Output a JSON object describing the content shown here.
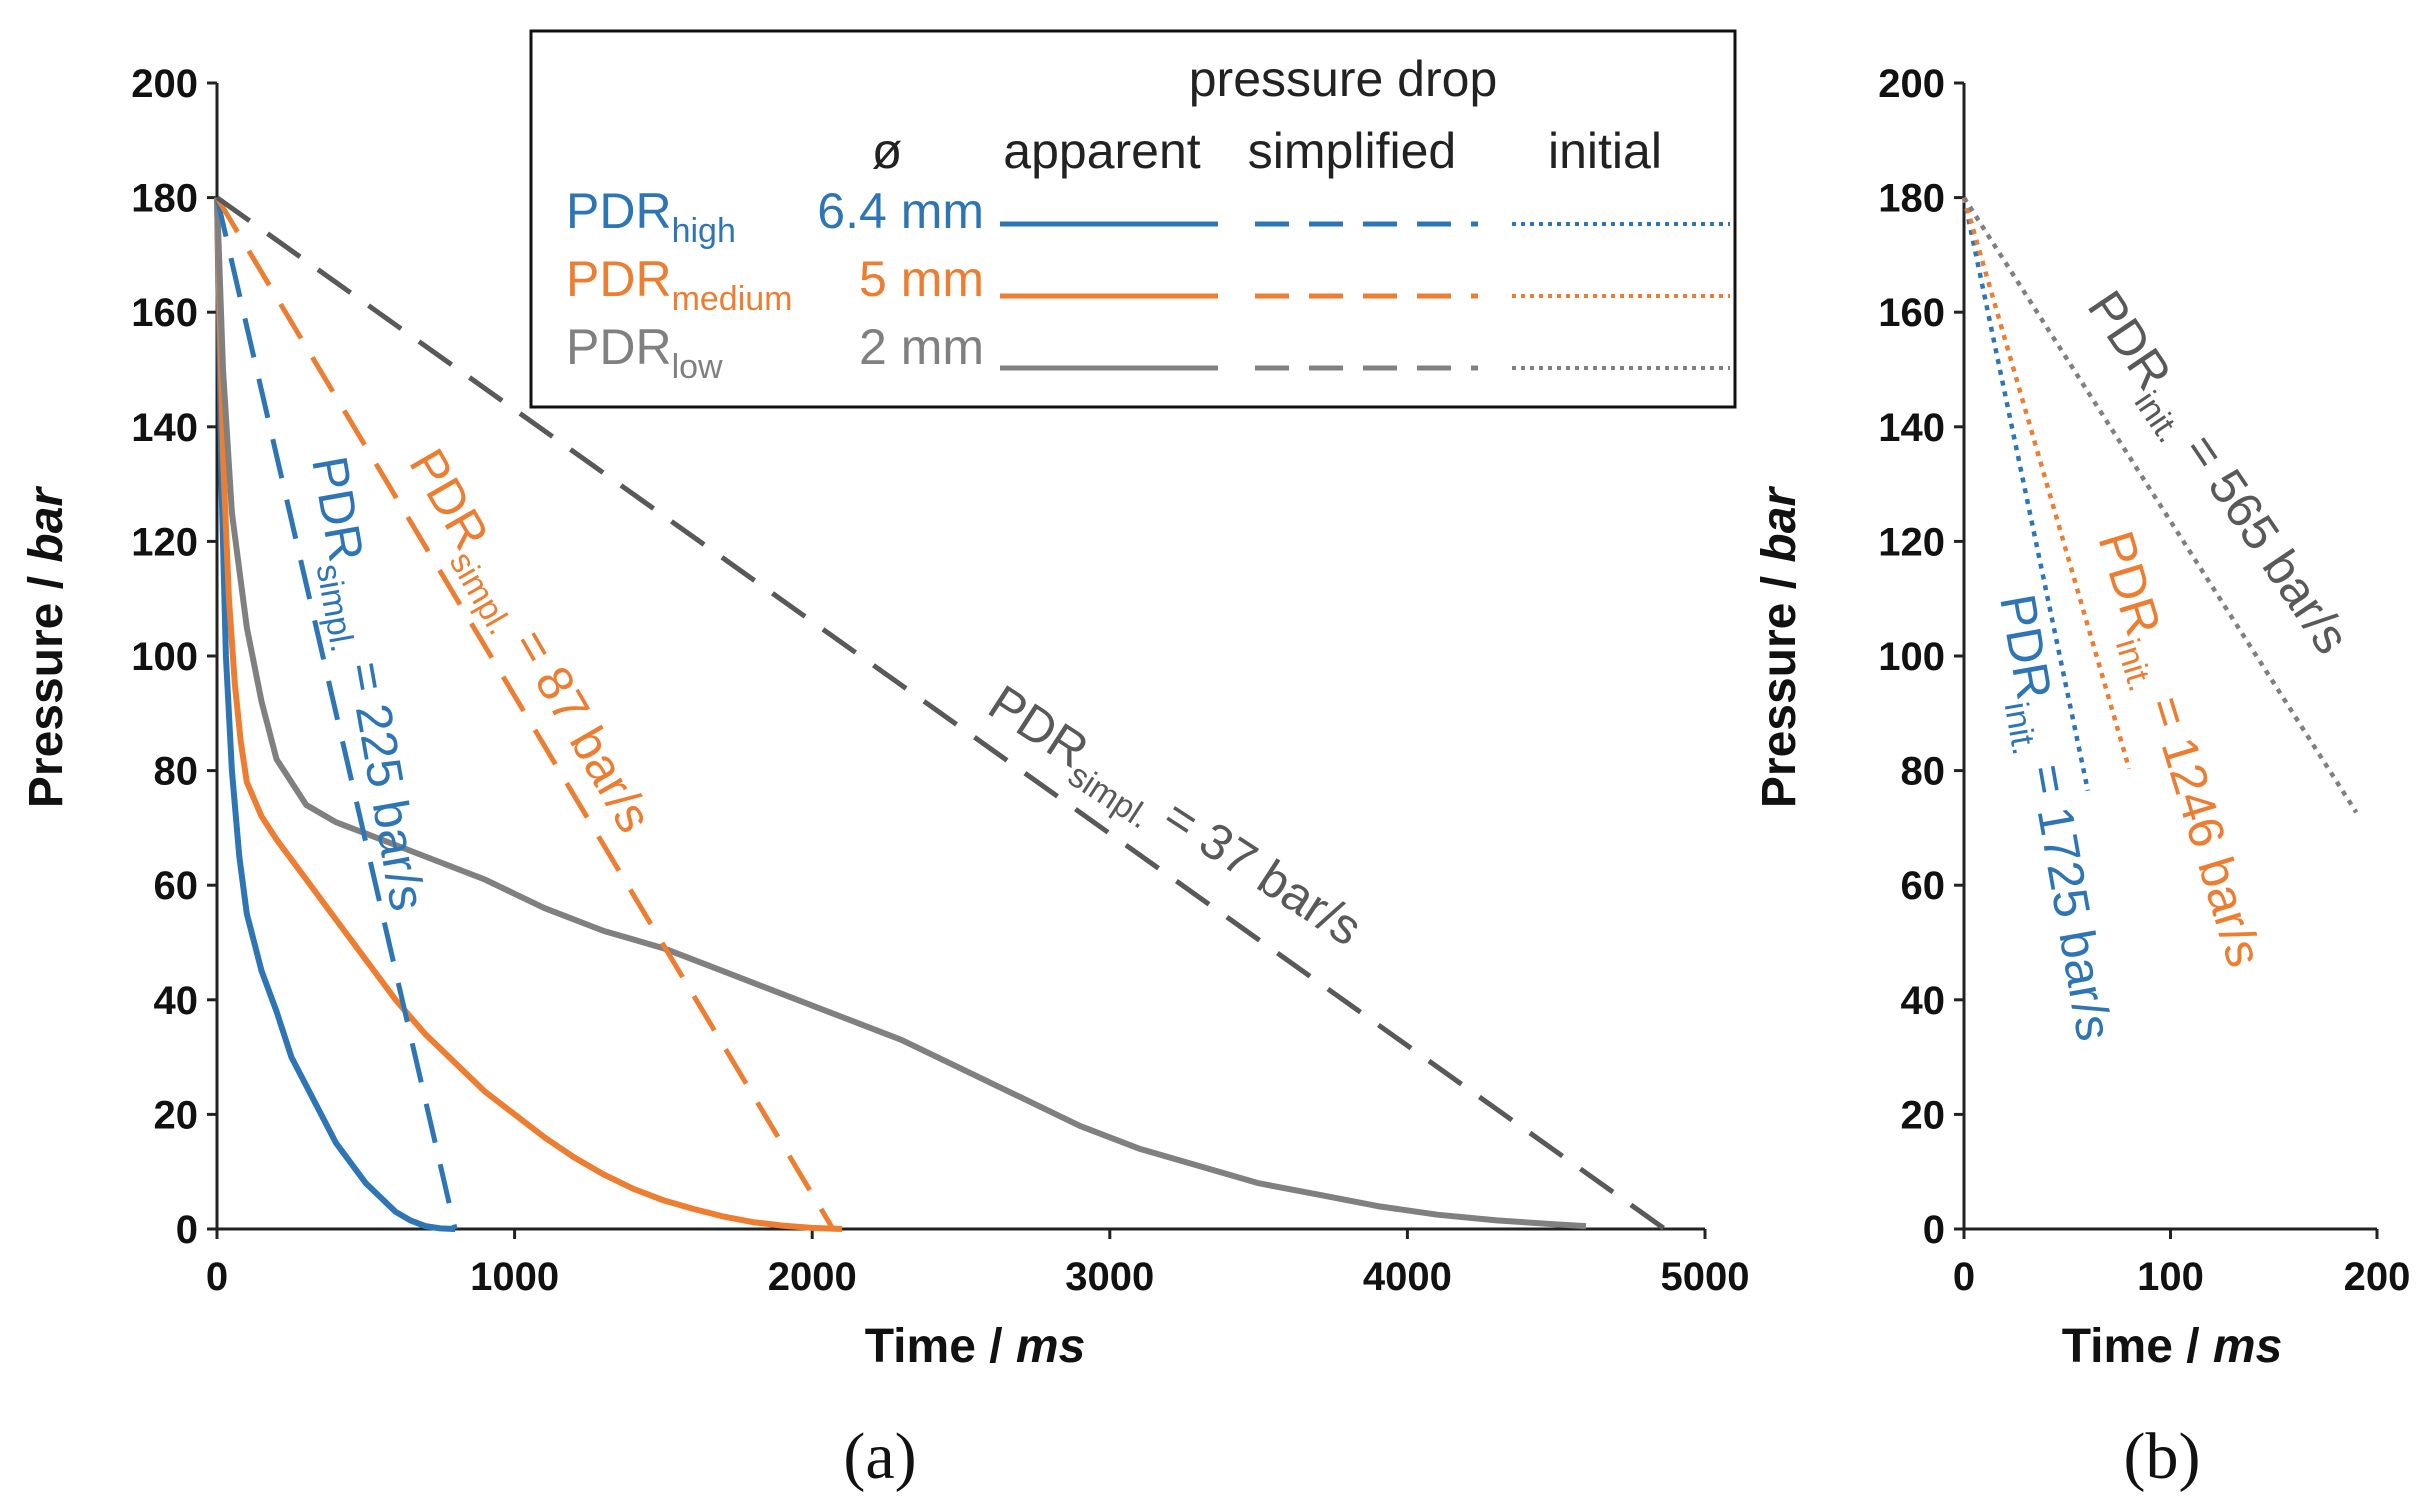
{
  "chart_data": [
    {
      "panel": "(a)",
      "type": "line",
      "xlabel": "Time",
      "xlabel_unit": "ms",
      "ylabel": "Pressure",
      "ylabel_unit": "bar",
      "xlim": [
        0,
        5000
      ],
      "ylim": [
        0,
        200
      ],
      "xticks": [
        "0",
        "1000",
        "2000",
        "3000",
        "4000",
        "5000"
      ],
      "yticks": [
        "0",
        "20",
        "40",
        "60",
        "80",
        "100",
        "120",
        "140",
        "160",
        "180",
        "200"
      ],
      "legend": {
        "title": "pressure drop",
        "diameter_header": "ø",
        "columns": [
          "apparent",
          "simplified",
          "initial"
        ],
        "rows": [
          {
            "main": "PDR",
            "sub": "high",
            "diameter": "6.4 mm",
            "color": "#2e75b6"
          },
          {
            "main": "PDR",
            "sub": "medium",
            "diameter": "5 mm",
            "color": "#ed7d31"
          },
          {
            "main": "PDR",
            "sub": "low",
            "diameter": "2 mm",
            "color": "#808080"
          }
        ]
      },
      "series": [
        {
          "name": "PDR high apparent",
          "style": "solid",
          "color": "#2e75b6",
          "x": [
            0,
            15,
            30,
            50,
            75,
            100,
            150,
            200,
            250,
            300,
            400,
            500,
            600,
            650,
            700,
            750,
            800
          ],
          "y": [
            180,
            130,
            100,
            80,
            65,
            55,
            45,
            38,
            30,
            25,
            15,
            8,
            3,
            1.5,
            0.5,
            0.1,
            0
          ]
        },
        {
          "name": "PDR medium apparent",
          "style": "solid",
          "color": "#ed7d31",
          "x": [
            0,
            20,
            40,
            60,
            80,
            100,
            150,
            200,
            300,
            400,
            500,
            600,
            700,
            800,
            900,
            1000,
            1100,
            1200,
            1300,
            1400,
            1500,
            1600,
            1700,
            1800,
            1900,
            2000,
            2100
          ],
          "y": [
            180,
            135,
            110,
            95,
            85,
            78,
            72,
            68,
            61,
            54,
            47,
            40,
            34,
            29,
            24,
            20,
            16,
            12.5,
            9.5,
            7,
            5,
            3.5,
            2.2,
            1.2,
            0.6,
            0.2,
            0
          ]
        },
        {
          "name": "PDR low apparent",
          "style": "solid",
          "color": "#808080",
          "x": [
            0,
            20,
            50,
            100,
            150,
            200,
            300,
            400,
            500,
            700,
            900,
            1100,
            1300,
            1500,
            1700,
            1900,
            2100,
            2300,
            2500,
            2700,
            2900,
            3100,
            3300,
            3500,
            3700,
            3900,
            4100,
            4300,
            4500,
            4600
          ],
          "y": [
            180,
            150,
            125,
            105,
            92,
            82,
            74,
            71,
            69,
            65,
            61,
            56,
            52,
            49,
            45,
            41,
            37,
            33,
            28,
            23,
            18,
            14,
            11,
            8,
            6,
            4,
            2.5,
            1.5,
            0.8,
            0.5
          ]
        },
        {
          "name": "PDR high simplified",
          "style": "dashed",
          "color": "#2e75b6",
          "x": [
            0,
            800
          ],
          "y": [
            180,
            0
          ]
        },
        {
          "name": "PDR medium simplified",
          "style": "dashed",
          "color": "#ed7d31",
          "x": [
            0,
            2070
          ],
          "y": [
            180,
            0
          ]
        },
        {
          "name": "PDR low simplified",
          "style": "dashed",
          "color": "#595959",
          "x": [
            0,
            4865
          ],
          "y": [
            180,
            0
          ]
        }
      ],
      "annotations": [
        {
          "main": "PDR",
          "sub": "simpl.",
          "value": " = 225 bar/s",
          "color": "#2e75b6"
        },
        {
          "main": "PDR",
          "sub": "simpl.",
          "value": " = 87 bar/s",
          "color": "#ed7d31"
        },
        {
          "main": "PDR",
          "sub": "simpl.",
          "value": " = 37 bar/s",
          "color": "#595959"
        }
      ]
    },
    {
      "panel": "(b)",
      "type": "line",
      "xlabel": "Time",
      "xlabel_unit": "ms",
      "ylabel": "Pressure",
      "ylabel_unit": "bar",
      "xlim": [
        0,
        200
      ],
      "ylim": [
        0,
        200
      ],
      "xticks": [
        "0",
        "100",
        "200"
      ],
      "yticks": [
        "0",
        "20",
        "40",
        "60",
        "80",
        "100",
        "120",
        "140",
        "160",
        "180",
        "200"
      ],
      "series": [
        {
          "name": "PDR high initial",
          "style": "dotted",
          "color": "#2e75b6",
          "x": [
            0,
            60
          ],
          "y": [
            180,
            76.5
          ]
        },
        {
          "name": "PDR medium initial",
          "style": "dotted",
          "color": "#ed7d31",
          "x": [
            0,
            80
          ],
          "y": [
            180,
            80.3
          ]
        },
        {
          "name": "PDR low initial",
          "style": "dotted",
          "color": "#808080",
          "x": [
            0,
            190
          ],
          "y": [
            180,
            72.7
          ]
        }
      ],
      "annotations": [
        {
          "main": "PDR",
          "sub": "init.",
          "value": " = 1725 bar/s",
          "color": "#2e75b6"
        },
        {
          "main": "PDR",
          "sub": "init.",
          "value": " = 1246 bar/s",
          "color": "#ed7d31"
        },
        {
          "main": "PDR",
          "sub": "init.",
          "value": " = 565 bar/s",
          "color": "#595959"
        }
      ]
    }
  ]
}
